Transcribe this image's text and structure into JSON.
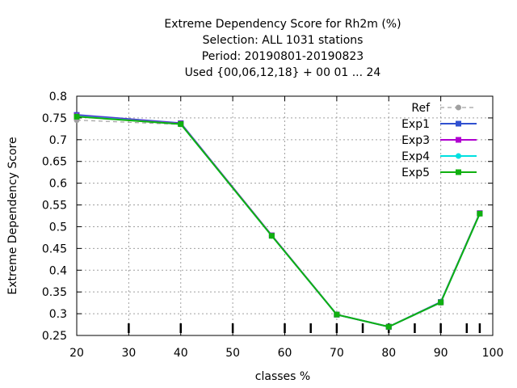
{
  "chart_data": {
    "type": "line",
    "title_lines": [
      "Extreme Dependency Score  for Rh2m (%)",
      "Selection: ALL    1031 stations",
      "Period: 20190801-20190823",
      "Used {00,06,12,18} + 00 01 ... 24"
    ],
    "xlabel": "classes %",
    "ylabel": "Extreme Dependency Score",
    "xlim": [
      20,
      100
    ],
    "ylim": [
      0.25,
      0.8
    ],
    "x_ticks": [
      "20",
      "30",
      "40",
      "50",
      "60",
      "70",
      "80",
      "90",
      "100"
    ],
    "y_ticks": [
      "0.25",
      "0.3",
      "0.35",
      "0.4",
      "0.45",
      "0.5",
      "0.55",
      "0.6",
      "0.65",
      "0.7",
      "0.75",
      "0.8"
    ],
    "grid": true,
    "legend_position": "top-right",
    "bottom_marks_x": [
      30,
      40,
      50,
      60,
      65,
      70,
      75,
      80,
      85,
      90,
      95,
      97.5
    ],
    "x": [
      20,
      40,
      57.5,
      70,
      80,
      90,
      97.5
    ],
    "series": [
      {
        "name": "Ref",
        "color": "#a0a0a0",
        "dashed": true,
        "marker": "circle",
        "values": [
          0.745,
          0.735,
          0.479,
          0.298,
          0.27,
          0.325,
          0.53
        ]
      },
      {
        "name": "Exp1",
        "color": "#3050d0",
        "dashed": false,
        "marker": "square",
        "values": [
          0.757,
          0.738,
          0.48,
          0.298,
          0.27,
          0.327,
          0.531
        ]
      },
      {
        "name": "Exp3",
        "color": "#b000d0",
        "dashed": false,
        "marker": "square",
        "values": [
          0.755,
          0.737,
          0.48,
          0.298,
          0.27,
          0.326,
          0.531
        ]
      },
      {
        "name": "Exp4",
        "color": "#00e0e0",
        "dashed": false,
        "marker": "circle",
        "values": [
          0.754,
          0.736,
          0.479,
          0.298,
          0.27,
          0.326,
          0.53
        ]
      },
      {
        "name": "Exp5",
        "color": "#10b010",
        "dashed": false,
        "marker": "square",
        "values": [
          0.753,
          0.736,
          0.479,
          0.298,
          0.27,
          0.326,
          0.53
        ]
      }
    ]
  }
}
